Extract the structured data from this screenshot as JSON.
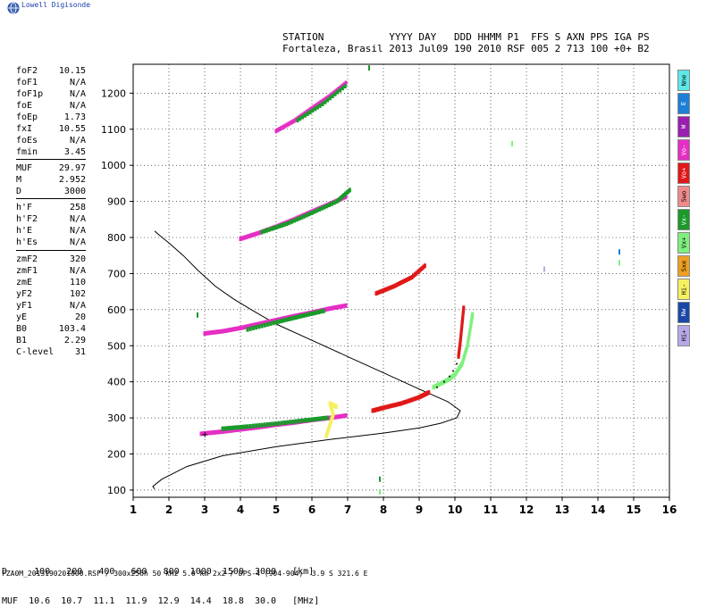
{
  "branding": {
    "text": "Lowell Digisonde",
    "icon": "globe-icon"
  },
  "header": {
    "line1": "STATION           YYYY DAY   DDD HHMM P1  FFS S AXN PPS IGA PS",
    "line2": "Fortaleza, Brasil 2013 Jul09 190 2010 RSF 005 2 713 100 +0+ B2"
  },
  "params": [
    {
      "k": "foF2",
      "v": "10.15"
    },
    {
      "k": "foF1",
      "v": "N/A"
    },
    {
      "k": "foF1p",
      "v": "N/A"
    },
    {
      "k": "foE",
      "v": "N/A"
    },
    {
      "k": "foEp",
      "v": "1.73"
    },
    {
      "k": "fxI",
      "v": "10.55"
    },
    {
      "k": "foEs",
      "v": "N/A"
    },
    {
      "k": "fmin",
      "v": "3.45"
    },
    {
      "k": "MUF",
      "v": "29.97"
    },
    {
      "k": "M",
      "v": "2.952"
    },
    {
      "k": "D",
      "v": "3000"
    },
    {
      "k": "h'F",
      "v": "258"
    },
    {
      "k": "h'F2",
      "v": "N/A"
    },
    {
      "k": "h'E",
      "v": "N/A"
    },
    {
      "k": "h'Es",
      "v": "N/A"
    },
    {
      "k": "zmF2",
      "v": "320"
    },
    {
      "k": "zmF1",
      "v": "N/A"
    },
    {
      "k": "zmE",
      "v": "110"
    },
    {
      "k": "yF2",
      "v": "102"
    },
    {
      "k": "yF1",
      "v": "N/A"
    },
    {
      "k": "yE",
      "v": "20"
    },
    {
      "k": "B0",
      "v": "103.4"
    },
    {
      "k": "B1",
      "v": "2.29"
    },
    {
      "k": "C-level",
      "v": "31"
    }
  ],
  "legend": [
    {
      "label": "Nne",
      "color": "#5ee8e8"
    },
    {
      "label": "E",
      "color": "#1e7fd8"
    },
    {
      "label": "W",
      "color": "#9a1fb0"
    },
    {
      "label": "Vo-",
      "color": "#e62ec4"
    },
    {
      "label": "Vo+",
      "color": "#e01818"
    },
    {
      "label": "Swo",
      "color": "#f08a8a"
    },
    {
      "label": "Vx-",
      "color": "#1a9a2a"
    },
    {
      "label": "Vx+",
      "color": "#7ef07e"
    },
    {
      "label": "Sxe",
      "color": "#f0a020"
    },
    {
      "label": "Hi-",
      "color": "#f5f060"
    },
    {
      "label": "Nw",
      "color": "#1a48a8"
    },
    {
      "label": "Hi+",
      "color": "#b8a8e8"
    }
  ],
  "freq_table": {
    "row1": "D     100   200   400   600   800  1000  1500  3000   [km]",
    "row2": "MUF  10.6  10.7  11.1  11.9  12.9  14.4  18.8  30.0   [MHz]"
  },
  "footer": "FZA0M_2013190201000.RSF / 300x256h 50 kHz 5.0 km 2x2 / DPS-4 (904-904)  3.9 S 321.6 E",
  "chart_data": {
    "type": "scatter",
    "title": "",
    "xlabel": "",
    "ylabel": "",
    "xlim": [
      1,
      16
    ],
    "ylim": [
      80,
      1280
    ],
    "x_ticks": [
      1,
      2,
      3,
      4,
      5,
      6,
      7,
      8,
      9,
      10,
      11,
      12,
      13,
      14,
      15,
      16
    ],
    "y_ticks": [
      100,
      200,
      300,
      400,
      500,
      600,
      700,
      800,
      900,
      1000,
      1100,
      1200
    ],
    "grid": true,
    "series": [
      {
        "name": "Vo-",
        "color": "#e62ec4",
        "points": [
          [
            2.9,
            256
          ],
          [
            3.5,
            262
          ],
          [
            4.0,
            268
          ],
          [
            4.5,
            274
          ],
          [
            5.0,
            281
          ],
          [
            5.5,
            287
          ],
          [
            6.0,
            294
          ],
          [
            6.5,
            300
          ],
          [
            7.0,
            307
          ],
          [
            3.0,
            534
          ],
          [
            3.5,
            540
          ],
          [
            4.0,
            549
          ],
          [
            4.5,
            560
          ],
          [
            5.0,
            571
          ],
          [
            5.5,
            582
          ],
          [
            6.0,
            592
          ],
          [
            6.5,
            603
          ],
          [
            7.0,
            612
          ],
          [
            4.0,
            796
          ],
          [
            4.5,
            812
          ],
          [
            5.0,
            830
          ],
          [
            5.5,
            850
          ],
          [
            6.0,
            872
          ],
          [
            6.5,
            893
          ],
          [
            7.0,
            915
          ],
          [
            5.0,
            1095
          ],
          [
            5.5,
            1123
          ],
          [
            6.0,
            1158
          ],
          [
            6.5,
            1192
          ],
          [
            7.0,
            1232
          ]
        ]
      },
      {
        "name": "Vo+",
        "color": "#e01818",
        "points": [
          [
            7.7,
            320
          ],
          [
            8.0,
            328
          ],
          [
            8.5,
            340
          ],
          [
            9.0,
            357
          ],
          [
            9.3,
            372
          ],
          [
            7.8,
            645
          ],
          [
            8.3,
            665
          ],
          [
            8.8,
            690
          ],
          [
            9.2,
            725
          ],
          [
            10.1,
            470
          ],
          [
            10.15,
            510
          ],
          [
            10.2,
            560
          ],
          [
            10.25,
            610
          ]
        ]
      },
      {
        "name": "Vx-",
        "color": "#1a9a2a",
        "points": [
          [
            3.5,
            270
          ],
          [
            4.2,
            276
          ],
          [
            5.0,
            284
          ],
          [
            5.8,
            293
          ],
          [
            6.5,
            301
          ],
          [
            4.2,
            545
          ],
          [
            5.0,
            565
          ],
          [
            5.7,
            582
          ],
          [
            6.4,
            598
          ],
          [
            4.6,
            815
          ],
          [
            5.3,
            838
          ],
          [
            6.0,
            868
          ],
          [
            6.7,
            900
          ],
          [
            7.1,
            935
          ],
          [
            5.6,
            1125
          ],
          [
            6.3,
            1170
          ],
          [
            7.0,
            1225
          ]
        ]
      },
      {
        "name": "Vx+",
        "color": "#7ef07e",
        "points": [
          [
            9.4,
            385
          ],
          [
            9.8,
            405
          ],
          [
            10.0,
            420
          ],
          [
            10.2,
            450
          ],
          [
            10.35,
            500
          ],
          [
            10.45,
            560
          ],
          [
            10.5,
            590
          ]
        ]
      },
      {
        "name": "Hi-",
        "color": "#f5f060",
        "points": [
          [
            6.4,
            250
          ],
          [
            6.5,
            280
          ],
          [
            6.6,
            310
          ],
          [
            6.5,
            340
          ],
          [
            6.7,
            330
          ]
        ]
      }
    ],
    "profile": {
      "name": "electron density profile",
      "color": "#000000",
      "points": [
        [
          1.6,
          103
        ],
        [
          1.55,
          110
        ],
        [
          1.8,
          130
        ],
        [
          2.5,
          165
        ],
        [
          3.5,
          195
        ],
        [
          5.0,
          220
        ],
        [
          6.5,
          240
        ],
        [
          8.0,
          258
        ],
        [
          9.0,
          272
        ],
        [
          9.6,
          285
        ],
        [
          10.05,
          300
        ],
        [
          10.15,
          320
        ],
        [
          9.8,
          345
        ],
        [
          9.0,
          380
        ],
        [
          8.0,
          425
        ],
        [
          7.0,
          470
        ],
        [
          6.0,
          515
        ],
        [
          5.0,
          560
        ],
        [
          4.3,
          600
        ],
        [
          3.8,
          630
        ],
        [
          3.3,
          665
        ],
        [
          2.8,
          710
        ],
        [
          2.4,
          750
        ],
        [
          2.0,
          785
        ],
        [
          1.75,
          805
        ],
        [
          1.6,
          818
        ]
      ]
    },
    "x_trace_red": [
      [
        9.5,
        385
      ],
      [
        9.7,
        400
      ],
      [
        9.85,
        415
      ],
      [
        9.95,
        430
      ],
      [
        10.05,
        450
      ]
    ],
    "scattered": [
      [
        2.8,
        585,
        "#1a9a2a"
      ],
      [
        7.6,
        1270,
        "#1a9a2a"
      ],
      [
        11.6,
        1060,
        "#7ef07e"
      ],
      [
        12.5,
        712,
        "#b8a8e8"
      ],
      [
        14.6,
        760,
        "#1e7fd8"
      ],
      [
        14.6,
        730,
        "#7ef07e"
      ],
      [
        7.9,
        130,
        "#1a9a2a"
      ],
      [
        7.9,
        95,
        "#7ef07e"
      ]
    ]
  }
}
